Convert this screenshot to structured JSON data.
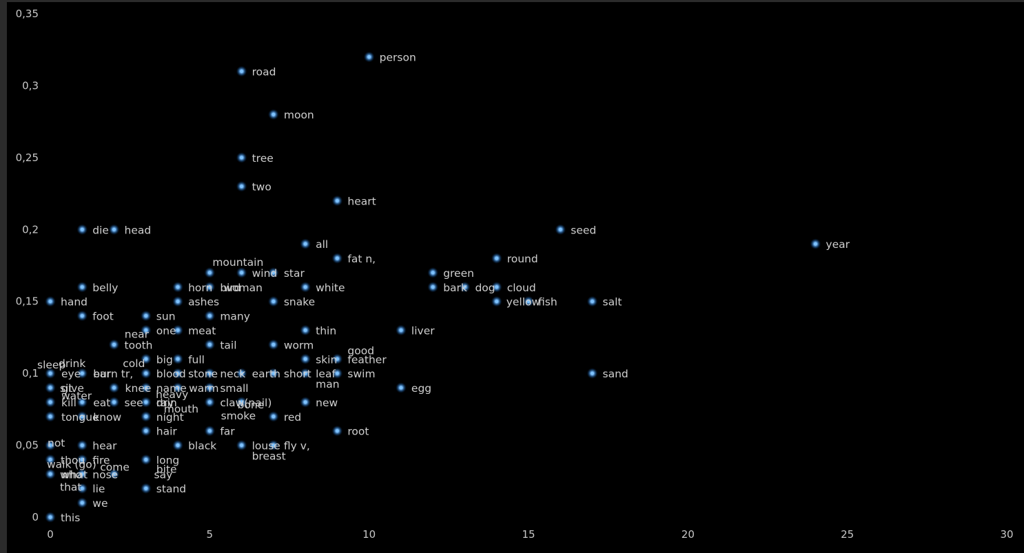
{
  "chart_data": {
    "type": "scatter",
    "title": "",
    "xlabel": "",
    "ylabel": "",
    "xlim": [
      0,
      30
    ],
    "ylim": [
      0,
      0.35
    ],
    "x_ticks": [
      0,
      5,
      10,
      15,
      20,
      25,
      30
    ],
    "y_ticks": [
      0,
      0.05,
      0.1,
      0.15,
      0.2,
      0.25,
      0.3,
      0.35
    ],
    "x_tick_labels": [
      "0",
      "5",
      "10",
      "15",
      "20",
      "25",
      "30"
    ],
    "y_tick_labels": [
      "0",
      "0,05",
      "0,1",
      "0,15",
      "0,2",
      "0,25",
      "0,3",
      "0,35"
    ],
    "grid": false,
    "legend": "none",
    "colors": {
      "background": "#000000",
      "point": "#7ec3ff",
      "glow": "#2b7fd4",
      "label": "#cfcfcf",
      "tick": "#c8c8c8"
    },
    "points": [
      {
        "label": "person",
        "x": 10,
        "y": 0.32
      },
      {
        "label": "road",
        "x": 6,
        "y": 0.31
      },
      {
        "label": "moon",
        "x": 7,
        "y": 0.28
      },
      {
        "label": "tree",
        "x": 6,
        "y": 0.25
      },
      {
        "label": "two",
        "x": 6,
        "y": 0.23
      },
      {
        "label": "heart",
        "x": 9,
        "y": 0.22
      },
      {
        "label": "die",
        "x": 1,
        "y": 0.2
      },
      {
        "label": "head",
        "x": 2,
        "y": 0.2
      },
      {
        "label": "seed",
        "x": 16,
        "y": 0.2
      },
      {
        "label": "all",
        "x": 8,
        "y": 0.19
      },
      {
        "label": "year",
        "x": 24,
        "y": 0.19
      },
      {
        "label": "fat n,",
        "x": 9,
        "y": 0.18
      },
      {
        "label": "round",
        "x": 14,
        "y": 0.18
      },
      {
        "label": "mountain",
        "x": 5,
        "y": 0.17
      },
      {
        "label": "wind",
        "x": 6,
        "y": 0.17
      },
      {
        "label": "star",
        "x": 7,
        "y": 0.17
      },
      {
        "label": "green",
        "x": 12,
        "y": 0.17
      },
      {
        "label": "belly",
        "x": 1,
        "y": 0.16
      },
      {
        "label": "horn",
        "x": 4,
        "y": 0.16
      },
      {
        "label": "bird",
        "x": 5,
        "y": 0.16
      },
      {
        "label": "woman",
        "x": 5,
        "y": 0.16
      },
      {
        "label": "white",
        "x": 8,
        "y": 0.16
      },
      {
        "label": "bark",
        "x": 12,
        "y": 0.16
      },
      {
        "label": "dog",
        "x": 13,
        "y": 0.16
      },
      {
        "label": "cloud",
        "x": 14,
        "y": 0.16
      },
      {
        "label": "hand",
        "x": 0,
        "y": 0.15
      },
      {
        "label": "ashes",
        "x": 4,
        "y": 0.15
      },
      {
        "label": "snake",
        "x": 7,
        "y": 0.15
      },
      {
        "label": "yellow",
        "x": 14,
        "y": 0.15
      },
      {
        "label": "fish",
        "x": 15,
        "y": 0.15
      },
      {
        "label": "salt",
        "x": 17,
        "y": 0.15
      },
      {
        "label": "foot",
        "x": 1,
        "y": 0.14
      },
      {
        "label": "sun",
        "x": 3,
        "y": 0.14
      },
      {
        "label": "many",
        "x": 5,
        "y": 0.14
      },
      {
        "label": "near",
        "x": 3,
        "y": 0.13
      },
      {
        "label": "one",
        "x": 3,
        "y": 0.13
      },
      {
        "label": "meat",
        "x": 4,
        "y": 0.13
      },
      {
        "label": "thin",
        "x": 8,
        "y": 0.13
      },
      {
        "label": "liver",
        "x": 11,
        "y": 0.13
      },
      {
        "label": "tooth",
        "x": 2,
        "y": 0.12
      },
      {
        "label": "tail",
        "x": 5,
        "y": 0.12
      },
      {
        "label": "worm",
        "x": 7,
        "y": 0.12
      },
      {
        "label": "good",
        "x": 9,
        "y": 0.11
      },
      {
        "label": "big",
        "x": 3,
        "y": 0.11
      },
      {
        "label": "full",
        "x": 4,
        "y": 0.11
      },
      {
        "label": "skin",
        "x": 8,
        "y": 0.11
      },
      {
        "label": "feather",
        "x": 9,
        "y": 0.11
      },
      {
        "label": "sleep",
        "x": 0,
        "y": 0.1
      },
      {
        "label": "drink",
        "x": 0,
        "y": 0.1
      },
      {
        "label": "cold",
        "x": 1,
        "y": 0.1
      },
      {
        "label": "eye",
        "x": 0,
        "y": 0.1
      },
      {
        "label": "ear",
        "x": 1,
        "y": 0.1
      },
      {
        "label": "burn tr,",
        "x": 1,
        "y": 0.1
      },
      {
        "label": "blood",
        "x": 3,
        "y": 0.1
      },
      {
        "label": "stone",
        "x": 4,
        "y": 0.1
      },
      {
        "label": "neck",
        "x": 5,
        "y": 0.1
      },
      {
        "label": "earth",
        "x": 6,
        "y": 0.1
      },
      {
        "label": "short",
        "x": 7,
        "y": 0.1
      },
      {
        "label": "leaf",
        "x": 8,
        "y": 0.1
      },
      {
        "label": "swim",
        "x": 9,
        "y": 0.1
      },
      {
        "label": "sand",
        "x": 17,
        "y": 0.1
      },
      {
        "label": "man",
        "x": 8,
        "y": 0.1
      },
      {
        "label": "sit",
        "x": 0,
        "y": 0.09
      },
      {
        "label": "give",
        "x": 0,
        "y": 0.09
      },
      {
        "label": "knee",
        "x": 2,
        "y": 0.09
      },
      {
        "label": "name",
        "x": 3,
        "y": 0.09
      },
      {
        "label": "warm",
        "x": 4,
        "y": 0.09
      },
      {
        "label": "small",
        "x": 5,
        "y": 0.09
      },
      {
        "label": "heavy",
        "x": 4,
        "y": 0.09
      },
      {
        "label": "egg",
        "x": 11,
        "y": 0.09
      },
      {
        "label": "water",
        "x": 0,
        "y": 0.09
      },
      {
        "label": "kill",
        "x": 0,
        "y": 0.08
      },
      {
        "label": "eat",
        "x": 1,
        "y": 0.08
      },
      {
        "label": "see",
        "x": 2,
        "y": 0.08
      },
      {
        "label": "dry",
        "x": 3,
        "y": 0.08
      },
      {
        "label": "rain",
        "x": 3,
        "y": 0.08
      },
      {
        "label": "claw(nail)",
        "x": 5,
        "y": 0.08
      },
      {
        "label": "bone",
        "x": 6,
        "y": 0.08
      },
      {
        "label": "new",
        "x": 8,
        "y": 0.08
      },
      {
        "label": "mouth",
        "x": 3,
        "y": 0.08
      },
      {
        "label": "tongue",
        "x": 0,
        "y": 0.07
      },
      {
        "label": "know",
        "x": 1,
        "y": 0.07
      },
      {
        "label": "night",
        "x": 3,
        "y": 0.07
      },
      {
        "label": "smoke",
        "x": 6,
        "y": 0.08
      },
      {
        "label": "red",
        "x": 7,
        "y": 0.07
      },
      {
        "label": "hair",
        "x": 3,
        "y": 0.06
      },
      {
        "label": "far",
        "x": 5,
        "y": 0.06
      },
      {
        "label": "root",
        "x": 9,
        "y": 0.06
      },
      {
        "label": "not",
        "x": 0,
        "y": 0.05
      },
      {
        "label": "hear",
        "x": 1,
        "y": 0.05
      },
      {
        "label": "black",
        "x": 4,
        "y": 0.05
      },
      {
        "label": "louse",
        "x": 6,
        "y": 0.05
      },
      {
        "label": "fly v,",
        "x": 7,
        "y": 0.05
      },
      {
        "label": "walk (go)",
        "x": 0,
        "y": 0.04
      },
      {
        "label": "breast",
        "x": 6,
        "y": 0.05
      },
      {
        "label": "thou",
        "x": 0,
        "y": 0.04
      },
      {
        "label": "fire",
        "x": 1,
        "y": 0.04
      },
      {
        "label": "long",
        "x": 3,
        "y": 0.04
      },
      {
        "label": "come",
        "x": 1,
        "y": 0.04
      },
      {
        "label": "bite",
        "x": 3,
        "y": 0.04
      },
      {
        "label": "who",
        "x": 0,
        "y": 0.03
      },
      {
        "label": "what",
        "x": 0,
        "y": 0.03
      },
      {
        "label": "nose",
        "x": 1,
        "y": 0.03
      },
      {
        "label": "say",
        "x": 2,
        "y": 0.03
      },
      {
        "label": "that",
        "x": 0,
        "y": 0.03
      },
      {
        "label": "lie",
        "x": 1,
        "y": 0.02
      },
      {
        "label": "stand",
        "x": 3,
        "y": 0.02
      },
      {
        "label": "we",
        "x": 1,
        "y": 0.01
      },
      {
        "label": "this",
        "x": 0,
        "y": 0
      }
    ]
  }
}
